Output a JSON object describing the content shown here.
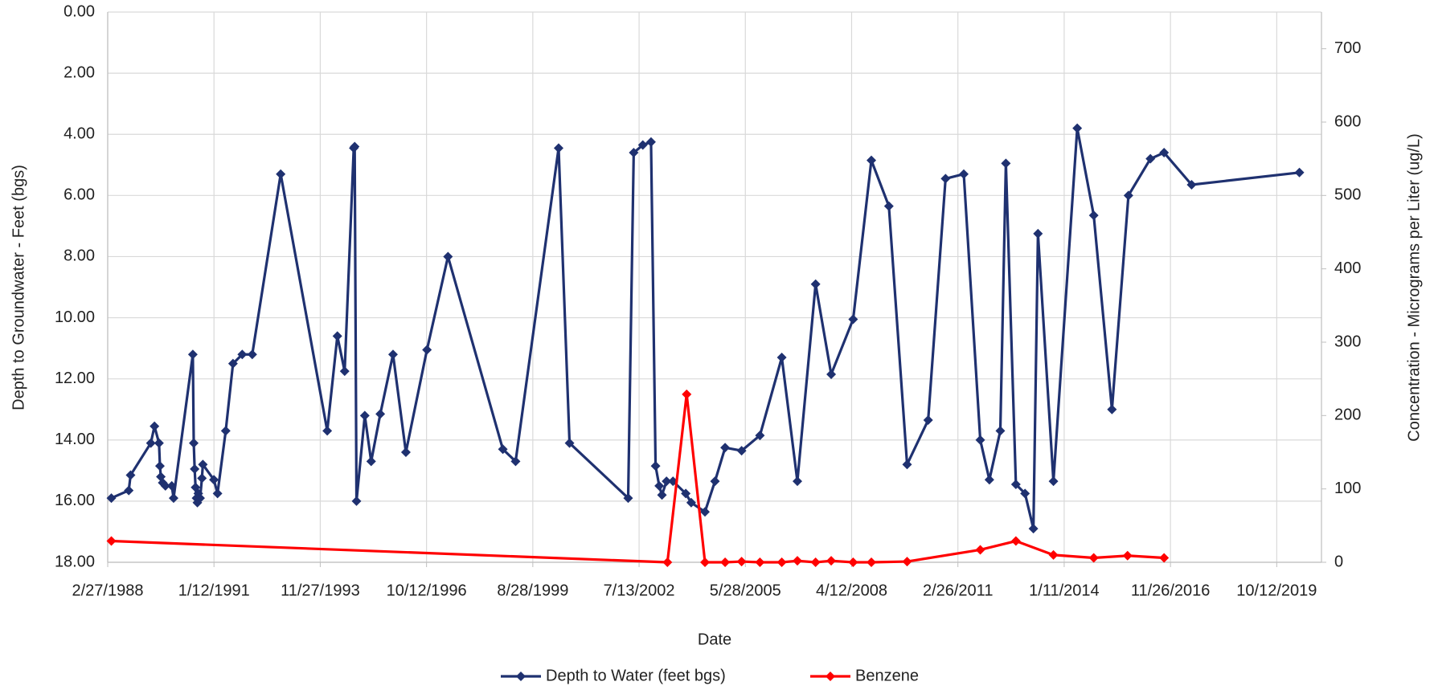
{
  "chart_data": {
    "type": "line",
    "x_label": "Date",
    "y_label": "Depth to Groundwater - Feet (bgs)",
    "y2_label": "Concentration - Micrograms per Liter (ug/L)",
    "xlim": [
      "2/27/1988",
      "12/27/2020"
    ],
    "xticks": [
      "2/27/1988",
      "1/12/1991",
      "11/27/1993",
      "10/12/1996",
      "8/28/1999",
      "7/13/2002",
      "5/28/2005",
      "4/12/2008",
      "2/26/2011",
      "1/11/2014",
      "11/26/2016",
      "10/12/2019"
    ],
    "ylim": [
      0,
      18
    ],
    "y_reversed": true,
    "yticks": [
      {
        "value": 0,
        "label": "0.00"
      },
      {
        "value": 2,
        "label": "2.00"
      },
      {
        "value": 4,
        "label": "4.00"
      },
      {
        "value": 6,
        "label": "6.00"
      },
      {
        "value": 8,
        "label": "8.00"
      },
      {
        "value": 10,
        "label": "10.00"
      },
      {
        "value": 12,
        "label": "12.00"
      },
      {
        "value": 14,
        "label": "14.00"
      },
      {
        "value": 16,
        "label": "16.00"
      },
      {
        "value": 18,
        "label": "18.00"
      }
    ],
    "y2lim": [
      0,
      750
    ],
    "y2ticks": [
      0,
      100,
      200,
      300,
      400,
      500,
      600,
      700
    ],
    "grid": true,
    "legend": "bottom",
    "series": [
      {
        "name": "Depth to Water (feet bgs)",
        "color": "#1f3170",
        "axis": "y",
        "x": [
          "4/3/1988",
          "9/22/1988",
          "10/10/1988",
          "4/28/1989",
          "6/3/1989",
          "7/18/1989",
          "7/27/1989",
          "8/5/1989",
          "8/23/1989",
          "9/19/1989",
          "11/21/1989",
          "12/9/1989",
          "6/17/1990",
          "6/26/1990",
          "7/5/1990",
          "7/14/1990",
          "7/23/1990",
          "8/1/1990",
          "8/10/1990",
          "8/28/1990",
          "9/15/1990",
          "9/24/1990",
          "1/11/1991",
          "2/16/1991",
          "5/8/1991",
          "7/19/1991",
          "10/18/1991",
          "1/25/1992",
          "11/1/1992",
          "2/4/1994",
          "5/15/1994",
          "7/26/1994",
          "10/24/1994",
          "11/2/1994",
          "11/20/1994",
          "2/10/1995",
          "4/14/1995",
          "7/13/1995",
          "11/16/1995",
          "3/22/1996",
          "10/16/1996",
          "5/12/1997",
          "11/5/1998",
          "3/11/1999",
          "5/9/2000",
          "8/25/2000",
          "3/27/2002",
          "5/21/2002",
          "8/19/2002",
          "11/8/2002",
          "12/23/2002",
          "1/28/2003",
          "2/24/2003",
          "4/10/2003",
          "6/13/2003",
          "10/17/2003",
          "12/10/2003",
          "4/24/2004",
          "8/1/2004",
          "11/9/2004",
          "4/21/2005",
          "10/19/2005",
          "5/23/2006",
          "10/24/2006",
          "4/22/2007",
          "9/23/2007",
          "4/27/2008",
          "10/24/2008",
          "4/15/2009",
          "10/12/2009",
          "5/8/2010",
          "10/27/2010",
          "4/25/2011",
          "10/5/2011",
          "1/3/2012",
          "4/20/2012",
          "6/14/2012",
          "9/21/2012",
          "12/20/2012",
          "3/13/2013",
          "4/27/2013",
          "9/27/2013",
          "5/20/2014",
          "10/30/2014",
          "4/28/2015",
          "10/8/2015",
          "5/12/2016",
          "9/24/2016",
          "6/23/2017",
          "5/23/2020"
        ],
        "values": [
          15.9,
          15.65,
          15.15,
          14.1,
          13.55,
          14.1,
          14.85,
          15.2,
          15.4,
          15.5,
          15.5,
          15.9,
          11.2,
          14.1,
          14.95,
          15.55,
          15.9,
          16.05,
          15.75,
          15.9,
          15.25,
          14.8,
          15.3,
          15.75,
          13.7,
          11.5,
          11.2,
          11.2,
          5.3,
          13.7,
          10.6,
          11.75,
          4.45,
          4.4,
          16.0,
          13.2,
          14.7,
          13.15,
          11.2,
          14.4,
          11.05,
          8.0,
          14.3,
          14.7,
          4.45,
          14.1,
          15.9,
          4.6,
          4.35,
          4.25,
          14.85,
          15.5,
          15.8,
          15.35,
          15.35,
          15.75,
          16.05,
          16.35,
          15.35,
          14.25,
          14.35,
          13.85,
          11.3,
          15.35,
          8.9,
          11.85,
          10.05,
          4.85,
          6.35,
          14.8,
          13.35,
          5.45,
          5.3,
          14.0,
          15.3,
          13.7,
          4.95,
          15.45,
          15.75,
          16.9,
          7.25,
          15.35,
          3.8,
          6.65,
          13.0,
          6.0,
          4.8,
          4.6,
          5.65,
          5.25
        ]
      },
      {
        "name": "Benzene",
        "color": "#ff0000",
        "axis": "y2",
        "x": [
          "4/3/1988",
          "4/19/2003",
          "10/26/2003",
          "4/24/2004",
          "11/9/2004",
          "4/21/2005",
          "10/19/2005",
          "5/23/2006",
          "10/24/2006",
          "4/22/2007",
          "9/23/2007",
          "4/27/2008",
          "10/24/2008",
          "10/12/2009",
          "10/5/2011",
          "9/21/2012",
          "9/27/2013",
          "10/30/2014",
          "9/29/2015",
          "9/24/2016"
        ],
        "values": [
          29,
          0,
          229,
          0,
          0,
          1,
          0,
          0,
          2,
          0,
          2,
          0,
          0,
          1,
          17,
          29,
          10,
          6,
          9,
          6
        ]
      }
    ]
  }
}
